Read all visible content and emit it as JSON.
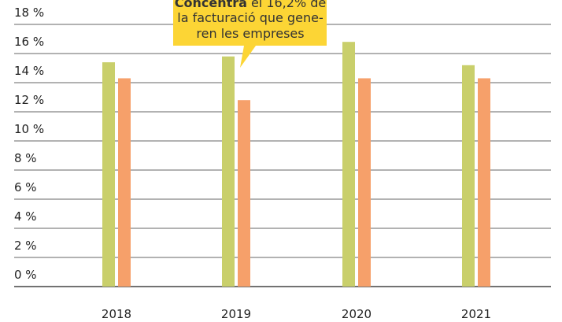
{
  "chart_data": {
    "type": "bar",
    "categories": [
      "2018",
      "2019",
      "2020",
      "2021"
    ],
    "series": [
      {
        "color": "#c9cf6b",
        "values": [
          15.4,
          15.8,
          16.8,
          15.2
        ]
      },
      {
        "color": "#f6a06a",
        "values": [
          14.3,
          12.8,
          14.3,
          14.3
        ]
      }
    ],
    "ylim": [
      0,
      18
    ],
    "yticks": [
      {
        "value": 0,
        "label": "0 %"
      },
      {
        "value": 2,
        "label": "2 %"
      },
      {
        "value": 4,
        "label": "4 %"
      },
      {
        "value": 6,
        "label": "6 %"
      },
      {
        "value": 8,
        "label": "8 %"
      },
      {
        "value": 10,
        "label": "10 %"
      },
      {
        "value": 12,
        "label": "12 %"
      },
      {
        "value": 14,
        "label": "14 %"
      },
      {
        "value": 16,
        "label": "16 %"
      },
      {
        "value": 18,
        "label": "18 %"
      }
    ],
    "grid": true,
    "annotation": {
      "lead": "Concentra",
      "lines": [
        "el 16,2% de",
        "la facturació que gene-",
        "ren les empreses"
      ],
      "color": "#fcd535"
    }
  }
}
